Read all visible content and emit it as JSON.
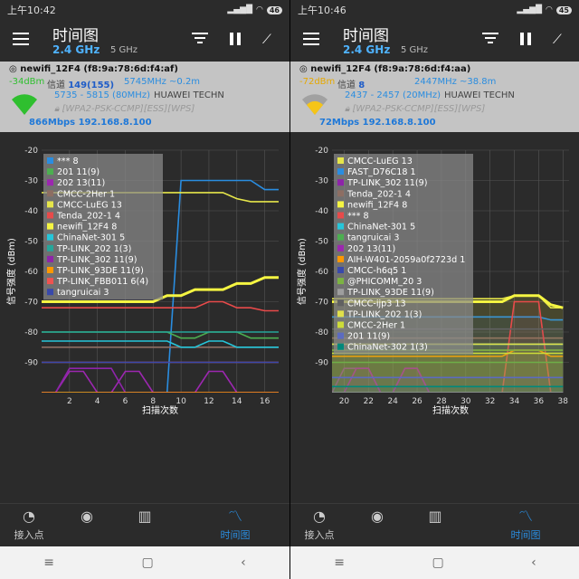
{
  "left": {
    "status": {
      "time": "上午10:42",
      "battery": "46"
    },
    "appbar": {
      "title": "时间图",
      "band_active": "2.4 GHz",
      "band_other": "5 GHz"
    },
    "info": {
      "ssid": "newifi_12F4",
      "mac": "(f8:9a:78:6d:f4:af)",
      "dbm": "-34dBm",
      "channel_label": "信道",
      "channel": "149(155)",
      "freq": "5745MHz ~0.2m",
      "freq_range": "5735 - 5815 (80MHz)",
      "vendor": "HUAWEI TECHN",
      "security": "[WPA2-PSK-CCMP][ESS][WPS]",
      "rate": "866Mbps 192.168.8.100",
      "signal_color": "#2fbf2f",
      "dbm_color": "#2fbf2f"
    },
    "chart_data": {
      "type": "line",
      "ylabel": "信号强度 (dBm)",
      "xlabel": "扫描次数",
      "ylim": [
        -100,
        -20
      ],
      "xlim": [
        0,
        17
      ],
      "yticks": [
        -20,
        -30,
        -40,
        -50,
        -60,
        -70,
        -80,
        -90
      ],
      "xticks": [
        2,
        4,
        6,
        8,
        10,
        12,
        14,
        16
      ],
      "x": [
        0,
        1,
        2,
        3,
        4,
        5,
        6,
        7,
        8,
        9,
        10,
        11,
        12,
        13,
        14,
        15,
        16,
        17
      ],
      "series": [
        {
          "name": "*** 8",
          "color": "#2a8de0",
          "values": [
            -100,
            -100,
            -100,
            -100,
            -100,
            -100,
            -100,
            -100,
            -100,
            -100,
            -30,
            -30,
            -30,
            -30,
            -30,
            -30,
            -33,
            -33
          ]
        },
        {
          "name": "201 11(9)",
          "color": "#4caf50",
          "values": [
            -80,
            -80,
            -80,
            -80,
            -80,
            -80,
            -80,
            -80,
            -80,
            -80,
            -82,
            -82,
            -80,
            -80,
            -80,
            -82,
            -82,
            -82
          ]
        },
        {
          "name": "202 13(11)",
          "color": "#9c27b0",
          "values": [
            -100,
            -100,
            -93,
            -93,
            -100,
            -100,
            -93,
            -93,
            -100,
            -100,
            -100,
            -100,
            -93,
            -93,
            -100,
            -100,
            -100,
            -100
          ]
        },
        {
          "name": "CMCC-2Her 1",
          "color": "#8d6e63",
          "values": [
            -85,
            -85,
            -85,
            -85,
            -85,
            -85,
            -85,
            -85,
            -85,
            -85,
            -85,
            -85,
            -85,
            -85,
            -85,
            -85,
            -85,
            -85
          ]
        },
        {
          "name": "CMCC-LuEG 13",
          "color": "#e6e64a",
          "values": [
            -34,
            -34,
            -34,
            -34,
            -34,
            -34,
            -34,
            -34,
            -34,
            -34,
            -34,
            -34,
            -34,
            -34,
            -36,
            -37,
            -37,
            -37
          ]
        },
        {
          "name": "Tenda_202-1 4",
          "color": "#e84a4a",
          "values": [
            -72,
            -72,
            -72,
            -72,
            -72,
            -72,
            -72,
            -72,
            -72,
            -72,
            -72,
            -72,
            -70,
            -70,
            -72,
            -72,
            -73,
            -73
          ]
        },
        {
          "name": "newifi_12F4 8",
          "color": "#f5f542",
          "values": [
            -70,
            -70,
            -70,
            -70,
            -70,
            -70,
            -70,
            -70,
            -70,
            -68,
            -68,
            -66,
            -66,
            -66,
            -64,
            -64,
            -62,
            -62
          ]
        },
        {
          "name": "ChinaNet-301 5",
          "color": "#26c6da",
          "values": [
            -83,
            -83,
            -83,
            -83,
            -83,
            -83,
            -83,
            -83,
            -83,
            -83,
            -85,
            -85,
            -83,
            -83,
            -85,
            -85,
            -85,
            -85
          ]
        },
        {
          "name": "TP-LINK_202 1(3)",
          "color": "#26a69a",
          "values": [
            -80,
            -80,
            -80,
            -80,
            -80,
            -80,
            -80,
            -80,
            -80,
            -80,
            -80,
            -80,
            -80,
            -80,
            -80,
            -80,
            -80,
            -80
          ]
        },
        {
          "name": "TP-LINK_302 11(9)",
          "color": "#8e24aa",
          "values": [
            -100,
            -100,
            -92,
            -92,
            -92,
            -92,
            -100,
            -100,
            -100,
            -100,
            -100,
            -100,
            -100,
            -100,
            -100,
            -100,
            -100,
            -100
          ]
        },
        {
          "name": "TP-LINK_93DE 11(9)",
          "color": "#ff9800",
          "values": [
            -100,
            -100,
            -100,
            -100,
            -100,
            -100,
            -100,
            -100,
            -100,
            -100,
            -100,
            -100,
            -100,
            -100,
            -100,
            -100,
            -100,
            -100
          ]
        },
        {
          "name": "TP-LINK_FBB011 6(4)",
          "color": "#ef5350",
          "values": [
            -90,
            -90,
            -90,
            -90,
            -90,
            -90,
            -90,
            -90,
            -90,
            -90,
            -90,
            -90,
            -90,
            -90,
            -90,
            -90,
            -90,
            -90
          ]
        },
        {
          "name": "tangruicai 3",
          "color": "#3949ab",
          "values": [
            -90,
            -90,
            -90,
            -90,
            -90,
            -90,
            -90,
            -90,
            -90,
            -90,
            -90,
            -90,
            -90,
            -90,
            -90,
            -90,
            -90,
            -90
          ]
        }
      ]
    }
  },
  "right": {
    "status": {
      "time": "上午10:46",
      "battery": "45"
    },
    "appbar": {
      "title": "时间图",
      "band_active": "2.4 GHz",
      "band_other": "5 GHz"
    },
    "info": {
      "ssid": "newifi_12F4",
      "mac": "(f8:9a:78:6d:f4:aa)",
      "dbm": "-72dBm",
      "channel_label": "信道",
      "channel": "8",
      "freq": "2447MHz ~38.8m",
      "freq_range": "2437 - 2457 (20MHz)",
      "vendor": "HUAWEI TECHN",
      "security": "[WPA2-PSK-CCMP][ESS][WPS]",
      "rate": "72Mbps 192.168.8.100",
      "signal_color": "#f5c518",
      "dbm_color": "#e6a800"
    },
    "chart_data": {
      "type": "line",
      "ylabel": "信号强度 (dBm)",
      "xlabel": "扫描次数",
      "ylim": [
        -100,
        -20
      ],
      "xlim": [
        19,
        38.5
      ],
      "yticks": [
        -20,
        -30,
        -40,
        -50,
        -60,
        -70,
        -80,
        -90
      ],
      "xticks": [
        20,
        22,
        24,
        26,
        28,
        30,
        32,
        34,
        36,
        38
      ],
      "x": [
        19,
        20,
        21,
        22,
        23,
        24,
        25,
        26,
        27,
        28,
        29,
        30,
        31,
        32,
        33,
        34,
        35,
        36,
        37,
        38
      ],
      "series": [
        {
          "name": "CMCC-LuEG 13",
          "color": "#e6e64a",
          "values": [
            -69,
            -69,
            -69,
            -69,
            -69,
            -69,
            -69,
            -69,
            -69,
            -69,
            -69,
            -69,
            -69,
            -69,
            -69,
            -68,
            -68,
            -68,
            -72,
            -72
          ]
        },
        {
          "name": "FAST_D76C18 1",
          "color": "#2a8de0",
          "values": [
            -75,
            -75,
            -75,
            -75,
            -75,
            -75,
            -75,
            -75,
            -75,
            -75,
            -75,
            -75,
            -75,
            -75,
            -75,
            -75,
            -75,
            -75,
            -76,
            -76
          ]
        },
        {
          "name": "TP-LINK_302 11(9)",
          "color": "#8e24aa",
          "values": [
            -100,
            -92,
            -92,
            -92,
            -100,
            -100,
            -92,
            -92,
            -100,
            -100,
            -100,
            -100,
            -100,
            -100,
            -100,
            -100,
            -100,
            -100,
            -100,
            -100
          ]
        },
        {
          "name": "Tenda_202-1 4",
          "color": "#8d6e63",
          "values": [
            -82,
            -82,
            -82,
            -82,
            -82,
            -82,
            -82,
            -82,
            -82,
            -82,
            -82,
            -82,
            -82,
            -82,
            -82,
            -82,
            -82,
            -82,
            -82,
            -82
          ]
        },
        {
          "name": "newifi_12F4 8",
          "color": "#f5f542",
          "values": [
            -70,
            -70,
            -70,
            -70,
            -70,
            -70,
            -70,
            -70,
            -70,
            -70,
            -70,
            -70,
            -70,
            -70,
            -70,
            -68,
            -68,
            -68,
            -71,
            -72
          ]
        },
        {
          "name": "*** 8",
          "color": "#e84a4a",
          "values": [
            -100,
            -100,
            -100,
            -100,
            -100,
            -100,
            -100,
            -100,
            -100,
            -100,
            -100,
            -100,
            -100,
            -100,
            -100,
            -70,
            -70,
            -70,
            -100,
            -100
          ]
        },
        {
          "name": "ChinaNet-301 5",
          "color": "#26c6da",
          "values": [
            -84,
            -84,
            -84,
            -84,
            -84,
            -84,
            -84,
            -84,
            -84,
            -84,
            -84,
            -84,
            -84,
            -84,
            -84,
            -84,
            -84,
            -84,
            -84,
            -84
          ]
        },
        {
          "name": "tangruicai 3",
          "color": "#4caf50",
          "values": [
            -90,
            -90,
            -90,
            -90,
            -90,
            -90,
            -90,
            -90,
            -90,
            -90,
            -90,
            -90,
            -90,
            -90,
            -90,
            -90,
            -90,
            -90,
            -90,
            -90
          ]
        },
        {
          "name": "202 13(11)",
          "color": "#9c27b0",
          "values": [
            -100,
            -100,
            -92,
            -92,
            -100,
            -100,
            -92,
            -92,
            -100,
            -100,
            -100,
            -100,
            -100,
            -100,
            -100,
            -100,
            -100,
            -100,
            -100,
            -100
          ]
        },
        {
          "name": "AIH-W401-2059a0f2723d 1",
          "color": "#ff9800",
          "values": [
            -88,
            -88,
            -88,
            -88,
            -88,
            -88,
            -88,
            -88,
            -88,
            -88,
            -88,
            -88,
            -88,
            -88,
            -88,
            -86,
            -86,
            -86,
            -88,
            -88
          ]
        },
        {
          "name": "CMCC-h6q5 1",
          "color": "#3949ab",
          "values": [
            -100,
            -100,
            -100,
            -100,
            -100,
            -100,
            -100,
            -100,
            -100,
            -100,
            -100,
            -100,
            -100,
            -100,
            -100,
            -100,
            -100,
            -100,
            -100,
            -100
          ]
        },
        {
          "name": "@PHICOMM_20 3",
          "color": "#7cb342",
          "values": [
            -86,
            -86,
            -86,
            -86,
            -86,
            -86,
            -86,
            -86,
            -86,
            -86,
            -86,
            -86,
            -86,
            -86,
            -86,
            -86,
            -86,
            -86,
            -86,
            -86
          ]
        },
        {
          "name": "TP-LINK_93DE 11(9)",
          "color": "#9e9e9e",
          "values": [
            -100,
            -100,
            -100,
            -100,
            -100,
            -100,
            -100,
            -100,
            -100,
            -100,
            -100,
            -100,
            -100,
            -100,
            -100,
            -100,
            -100,
            -100,
            -100,
            -100
          ]
        },
        {
          "name": "CMCC-ijp3 13",
          "color": "#616161",
          "values": [
            -79,
            -79,
            -79,
            -79,
            -79,
            -79,
            -79,
            -79,
            -79,
            -79,
            -79,
            -79,
            -79,
            -79,
            -79,
            -79,
            -79,
            -79,
            -79,
            -79
          ]
        },
        {
          "name": "TP-LINK_202 1(3)",
          "color": "#e0e04a",
          "values": [
            -84,
            -84,
            -84,
            -84,
            -84,
            -84,
            -84,
            -84,
            -84,
            -84,
            -84,
            -84,
            -84,
            -84,
            -84,
            -84,
            -84,
            -84,
            -84,
            -84
          ]
        },
        {
          "name": "CMCC-2Her 1",
          "color": "#cddc39",
          "values": [
            -87,
            -87,
            -87,
            -87,
            -87,
            -87,
            -87,
            -87,
            -87,
            -87,
            -87,
            -87,
            -87,
            -87,
            -87,
            -87,
            -87,
            -87,
            -87,
            -87
          ]
        },
        {
          "name": "201 11(9)",
          "color": "#5c6bc0",
          "values": [
            -95,
            -95,
            -95,
            -95,
            -95,
            -95,
            -95,
            -95,
            -95,
            -95,
            -95,
            -95,
            -95,
            -95,
            -95,
            -95,
            -95,
            -95,
            -95,
            -95
          ]
        },
        {
          "name": "ChinaNet-302 1(3)",
          "color": "#00897b",
          "values": [
            -98,
            -98,
            -98,
            -98,
            -98,
            -98,
            -98,
            -98,
            -98,
            -98,
            -98,
            -98,
            -98,
            -98,
            -98,
            -98,
            -98,
            -98,
            -98,
            -98
          ]
        }
      ]
    }
  },
  "bottom_nav": [
    {
      "label": "接入点",
      "icon": "wifi-icon"
    },
    {
      "label": "",
      "icon": "radar-icon"
    },
    {
      "label": "",
      "icon": "bar-chart-icon"
    },
    {
      "label": "时间图",
      "icon": "line-chart-icon",
      "active": true
    }
  ],
  "system_nav": {
    "menu": "≡",
    "home": "▢",
    "back": "‹"
  }
}
